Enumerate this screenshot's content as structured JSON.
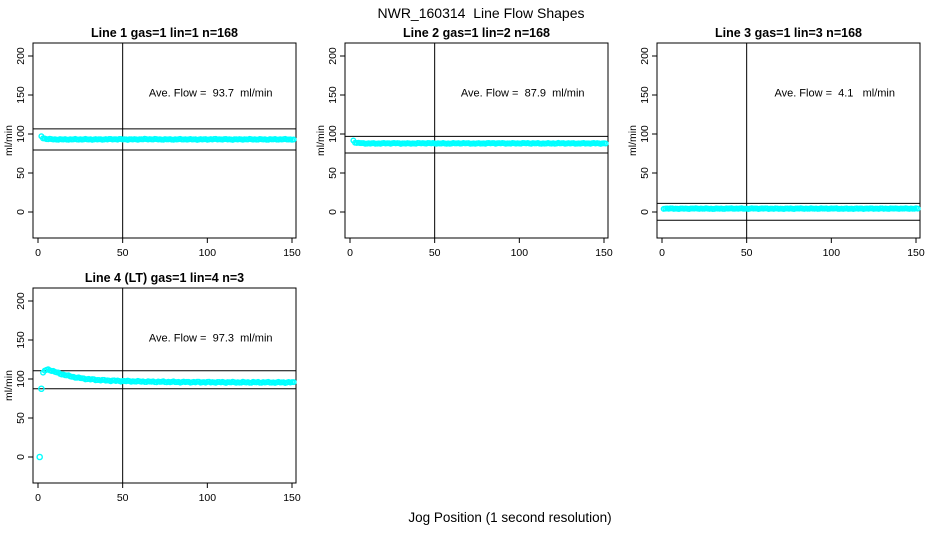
{
  "figure": {
    "title": "NWR_160314  Line Flow Shapes",
    "xlabel": "Jog Position (1 second resolution)",
    "background_color": "#ffffff",
    "marker_color": "#00ffff",
    "line_color": "#000000"
  },
  "chart_data": [
    {
      "type": "scatter",
      "title": "Line 1 gas=1 lin=1 n=168",
      "annotation": "Ave. Flow =  93.7  ml/min",
      "ave_flow_ml_min": 93.7,
      "n_points": 168,
      "ylabel": "ml/min",
      "x_ticks": [
        0,
        50,
        100,
        150
      ],
      "y_ticks": [
        0,
        50,
        100,
        150,
        200
      ],
      "xlim": [
        -3,
        152.6
      ],
      "ylim": [
        -33,
        217
      ],
      "vline_x": 50,
      "ref_lines": [
        106.5,
        79.5
      ],
      "marker_color": "#00ffff",
      "x_start": 2,
      "x_end": 151,
      "x_step": 1,
      "jitter": 0.6,
      "seed": 1,
      "profile_points": [
        [
          2,
          97
        ],
        [
          3,
          94.8
        ],
        [
          5,
          93.6
        ],
        [
          8,
          93.2
        ],
        [
          15,
          93
        ],
        [
          25,
          93.2
        ],
        [
          35,
          93
        ],
        [
          45,
          93.3
        ],
        [
          55,
          93
        ],
        [
          65,
          93.4
        ],
        [
          75,
          93
        ],
        [
          85,
          93.2
        ],
        [
          95,
          93
        ],
        [
          105,
          93.3
        ],
        [
          115,
          93
        ],
        [
          125,
          93.2
        ],
        [
          135,
          93
        ],
        [
          145,
          93.2
        ],
        [
          151,
          93
        ]
      ],
      "extra_points": []
    },
    {
      "type": "scatter",
      "title": "Line 2 gas=1 lin=2 n=168",
      "annotation": "Ave. Flow =  87.9  ml/min",
      "ave_flow_ml_min": 87.9,
      "n_points": 168,
      "ylabel": "ml/min",
      "x_ticks": [
        0,
        50,
        100,
        150
      ],
      "y_ticks": [
        0,
        50,
        100,
        150,
        200
      ],
      "xlim": [
        -3,
        152.6
      ],
      "ylim": [
        -33,
        217
      ],
      "vline_x": 50,
      "ref_lines": [
        97,
        75.6
      ],
      "marker_color": "#00ffff",
      "x_start": 2,
      "x_end": 151,
      "x_step": 1,
      "jitter": 0.6,
      "seed": 2,
      "profile_points": [
        [
          2,
          91.5
        ],
        [
          3,
          89.2
        ],
        [
          5,
          88.4
        ],
        [
          8,
          88
        ],
        [
          15,
          87.8
        ],
        [
          25,
          88.1
        ],
        [
          35,
          87.8
        ],
        [
          45,
          88.2
        ],
        [
          55,
          87.8
        ],
        [
          65,
          88.1
        ],
        [
          75,
          87.8
        ],
        [
          85,
          88.2
        ],
        [
          95,
          87.9
        ],
        [
          105,
          88.1
        ],
        [
          115,
          87.8
        ],
        [
          125,
          88.1
        ],
        [
          135,
          87.9
        ],
        [
          145,
          88
        ],
        [
          151,
          87.9
        ]
      ],
      "extra_points": []
    },
    {
      "type": "scatter",
      "title": "Line 3 gas=1 lin=3 n=168",
      "annotation": "Ave. Flow =  4.1   ml/min",
      "ave_flow_ml_min": 4.1,
      "n_points": 168,
      "ylabel": "ml/min",
      "x_ticks": [
        0,
        50,
        100,
        150
      ],
      "y_ticks": [
        0,
        50,
        100,
        150,
        200
      ],
      "xlim": [
        -3,
        152.6
      ],
      "ylim": [
        -33,
        217
      ],
      "vline_x": 50,
      "ref_lines": [
        11,
        -10.5
      ],
      "marker_color": "#00ffff",
      "x_start": 1,
      "x_end": 151,
      "x_step": 1,
      "jitter": 0.5,
      "seed": 3,
      "profile_points": [
        [
          1,
          4.4
        ],
        [
          10,
          4.2
        ],
        [
          20,
          4.4
        ],
        [
          30,
          4.2
        ],
        [
          40,
          4.4
        ],
        [
          50,
          4.3
        ],
        [
          60,
          4.4
        ],
        [
          70,
          4.2
        ],
        [
          80,
          4.4
        ],
        [
          90,
          4.3
        ],
        [
          100,
          4.4
        ],
        [
          110,
          4.2
        ],
        [
          120,
          4.4
        ],
        [
          130,
          4.3
        ],
        [
          140,
          4.4
        ],
        [
          151,
          4.3
        ]
      ],
      "extra_points": []
    },
    {
      "type": "scatter",
      "title": "Line 4 (LT) gas=1 lin=4 n=3",
      "annotation": "Ave. Flow =  97.3  ml/min",
      "ave_flow_ml_min": 97.3,
      "n_points": 3,
      "ylabel": "ml/min",
      "x_ticks": [
        0,
        50,
        100,
        150
      ],
      "y_ticks": [
        0,
        50,
        100,
        150,
        200
      ],
      "xlim": [
        -3,
        152.6
      ],
      "ylim": [
        -33,
        217
      ],
      "vline_x": 50,
      "ref_lines": [
        110.5,
        87.5
      ],
      "marker_color": "#00ffff",
      "x_start": 3,
      "x_end": 151,
      "x_step": 1,
      "jitter": 0.8,
      "seed": 4,
      "profile_points": [
        [
          3,
          107.5
        ],
        [
          4,
          110.5
        ],
        [
          5,
          111.8
        ],
        [
          6,
          112
        ],
        [
          7,
          111.5
        ],
        [
          8,
          110.8
        ],
        [
          10,
          109.2
        ],
        [
          12,
          107.6
        ],
        [
          14,
          106.2
        ],
        [
          17,
          104.6
        ],
        [
          20,
          103
        ],
        [
          23,
          101.8
        ],
        [
          26,
          100.8
        ],
        [
          30,
          99.8
        ],
        [
          34,
          99
        ],
        [
          38,
          98.4
        ],
        [
          43,
          97.9
        ],
        [
          48,
          97.5
        ],
        [
          54,
          97.1
        ],
        [
          60,
          96.8
        ],
        [
          67,
          96.5
        ],
        [
          75,
          96.3
        ],
        [
          83,
          96.1
        ],
        [
          92,
          96
        ],
        [
          101,
          95.9
        ],
        [
          110,
          95.8
        ],
        [
          120,
          95.7
        ],
        [
          130,
          95.7
        ],
        [
          140,
          95.6
        ],
        [
          151,
          95.6
        ]
      ],
      "extra_points": [
        [
          1,
          0
        ],
        [
          2,
          87.5
        ]
      ]
    }
  ]
}
